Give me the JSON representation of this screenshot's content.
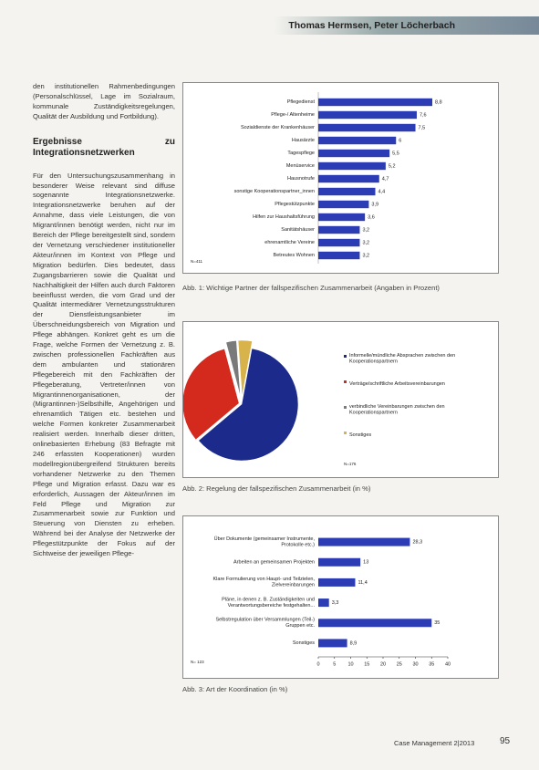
{
  "header": {
    "authors": "Thomas Hermsen, Peter Löcherbach"
  },
  "text": {
    "paragraphs": [
      "den institutionellen Rahmenbedingungen (Personalschlüssel, Lage im Sozialraum, kommunale Zuständigkeitsregelungen, Qualität der Ausbildung und Fortbildung).",
      "Für den Untersuchungszusammenhang in besonderer Weise relevant sind diffuse sogenannte Integrationsnetzwerke. Integrationsnetzwerke beruhen auf der Annahme, dass viele Leistungen, die von Migrant/innen benötigt werden, nicht nur im Bereich der Pflege bereitgestellt sind, sondern der Vernetzung verschiedener institutioneller Akteur/innen im Kontext von Pflege und Migration bedürfen. Dies bedeutet, dass Zugangsbarrieren sowie die Qualität und Nachhaltigkeit der Hilfen auch durch Faktoren beeinflusst werden, die vom Grad und der Qualität intermediärer Vernetzungsstrukturen der Dienstleistungsanbieter im Überschneidungsbereich von Migration und Pflege abhängen. Konkret geht es um die Frage, welche Formen der Vernetzung z. B. zwischen professionellen Fachkräften aus dem ambulanten und stationären Pflegebereich mit den Fachkräften der Pflegeberatung, Vertreter/innen von Migrantinnenorganisationen, der (Migrantinnen-)Selbsthilfe, Angehörigen und ehrenamtlich Tätigen etc. bestehen und welche Formen konkreter Zusammenarbeit realisiert werden. Innerhalb dieser dritten, onlinebasierten Erhebung (83 Befragte mit 246 erfassten Kooperationen) wurden modellregionübergreifend Strukturen bereits vorhandener Netzwerke zu den Themen Pflege und Migration erfasst. Dazu war es erforderlich, Aussagen der Akteur/innen im Feld Pflege und Migration zur Zusammenarbeit sowie zur Funktion und Steuerung von Diensten zu erheben. Während bei der Analyse der Netzwerke der Pflegestützpunkte der Fokus auf der Sichtweise der jeweiligen Pflege-"
    ],
    "heading": "Ergebnisse zu Integrationsnetzwerken"
  },
  "chart_data": [
    {
      "type": "bar",
      "orientation": "horizontal",
      "color": "#2b3cb4",
      "caption": "Abb. 1: Wichtige Partner der fallspezifischen Zusammenarbeit (Angaben in Prozent)",
      "note": "N=411",
      "categories": [
        "Pflegedienst",
        "Pflege-/ Altenheime",
        "Sozialdienste der Krankenhäuser",
        "Hausärzte",
        "Tagespflege",
        "Menüservice",
        "Hausnotrufe",
        "sonstige Kooperationspartner_innen",
        "Pflegestützpunkte",
        "Hilfen zur Haushaltsführung",
        "Sanitätshäuser",
        "ehrenamtliche Vereine",
        "Betreutes Wohnen"
      ],
      "values": [
        8.8,
        7.6,
        7.5,
        6,
        5.5,
        5.2,
        4.7,
        4.4,
        3.9,
        3.6,
        3.2,
        3.2,
        3.2
      ],
      "value_labels": [
        "8,8",
        "7,6",
        "7,5",
        "6",
        "5,5",
        "5,2",
        "4,7",
        "4,4",
        "3,9",
        "3,6",
        "3,2",
        "3,2",
        "3,2"
      ]
    },
    {
      "type": "pie",
      "caption": "Abb. 2: Regelung der fallspezifischen Zusammenarbeit (in %)",
      "note": "N=176",
      "categories": [
        "Informelle/mündliche Absprachen zwischen den Kooperationspartnern",
        "Verträge/schriftliche Arbeitsvereinbarungen",
        "verbindliche Vereinbarungen zwischen den Kooperationspartnern",
        "Sonstiges"
      ],
      "values": [
        61,
        32,
        3,
        4
      ],
      "colors": [
        "#1c2a8c",
        "#d42a1e",
        "#7a7a7a",
        "#d8b24a"
      ]
    },
    {
      "type": "bar",
      "orientation": "horizontal",
      "color": "#2b3cb4",
      "caption": "Abb. 3: Art der Koordination (in %)",
      "note": "N= 123",
      "categories": [
        "Über Dokumente (gemeinsamer Instrumente, Protokolle etc.)",
        "Arbeiten an gemeinsamen Projekten",
        "Klare Formulierung von Haupt- und Teilzielen, Zielvereinbarungen",
        "Pläne, in denen z. B. Zuständigkeiten und Verantwortungsbereiche festgehalten...",
        "Selbstregulation über Versammlungen (Teil-) Gruppen etc.",
        "Sonstiges"
      ],
      "values": [
        28.3,
        13,
        11.4,
        3.3,
        35,
        8.9
      ],
      "value_labels": [
        "28,3",
        "13",
        "11,4",
        "3,3",
        "35",
        "8,9"
      ],
      "xlim": [
        0,
        40
      ],
      "xticks": [
        0,
        5,
        10,
        15,
        20,
        25,
        30,
        35,
        40
      ]
    }
  ],
  "footer": {
    "journal": "Case Management 2|2013",
    "page": "95"
  }
}
